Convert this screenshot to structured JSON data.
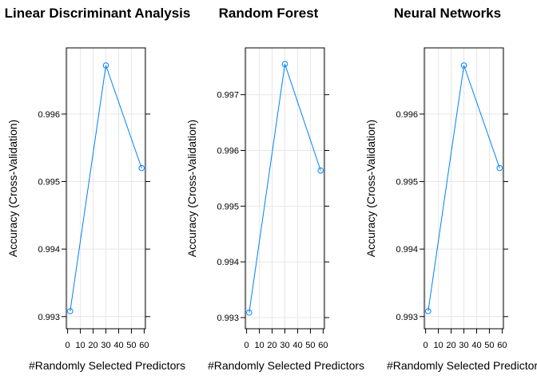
{
  "colors": {
    "series": "#0080ff",
    "grid": "#e6e6e6",
    "axis": "#000000",
    "background": "#ffffff"
  },
  "chart_data": [
    {
      "type": "line",
      "title": "Linear Discriminant Analysis",
      "xlabel": "#Randomly Selected Predictors",
      "ylabel": "Accuracy (Cross-Validation)",
      "x": [
        2,
        30,
        58
      ],
      "y": [
        0.99308,
        0.99672,
        0.9952
      ],
      "xlim": [
        -1,
        61
      ],
      "ylim": [
        0.99282,
        0.99698
      ],
      "xticks": [
        0,
        10,
        20,
        30,
        40,
        50,
        60
      ],
      "xtick_labels": [
        "0",
        "10",
        "20",
        "30",
        "40",
        "50",
        "60"
      ],
      "yticks": [
        0.993,
        0.994,
        0.995,
        0.996
      ],
      "ytick_labels": [
        "0.993",
        "0.994",
        "0.995",
        "0.996"
      ],
      "grid": true,
      "marker": "open-circle"
    },
    {
      "type": "line",
      "title": "Random Forest",
      "xlabel": "#Randomly Selected Predictors",
      "ylabel": "Accuracy (Cross-Validation)",
      "x": [
        2,
        30,
        58
      ],
      "y": [
        0.99309,
        0.99755,
        0.99564
      ],
      "xlim": [
        -1,
        61
      ],
      "ylim": [
        0.9928,
        0.99784
      ],
      "xticks": [
        0,
        10,
        20,
        30,
        40,
        50,
        60
      ],
      "xtick_labels": [
        "0",
        "10",
        "20",
        "30",
        "40",
        "50",
        "60"
      ],
      "yticks": [
        0.993,
        0.994,
        0.995,
        0.996,
        0.997
      ],
      "ytick_labels": [
        "0.993",
        "0.994",
        "0.995",
        "0.996",
        "0.997"
      ],
      "grid": true,
      "marker": "open-circle"
    },
    {
      "type": "line",
      "title": "Neural Networks",
      "xlabel": "#Randomly Selected Predictors",
      "ylabel": "Accuracy (Cross-Validation)",
      "x": [
        2,
        30,
        58
      ],
      "y": [
        0.99308,
        0.99672,
        0.9952
      ],
      "xlim": [
        -1,
        61
      ],
      "ylim": [
        0.99282,
        0.99698
      ],
      "xticks": [
        0,
        10,
        20,
        30,
        40,
        50,
        60
      ],
      "xtick_labels": [
        "0",
        "10",
        "20",
        "30",
        "40",
        "50",
        "60"
      ],
      "yticks": [
        0.993,
        0.994,
        0.995,
        0.996
      ],
      "ytick_labels": [
        "0.993",
        "0.994",
        "0.995",
        "0.996"
      ],
      "grid": true,
      "marker": "open-circle"
    }
  ]
}
